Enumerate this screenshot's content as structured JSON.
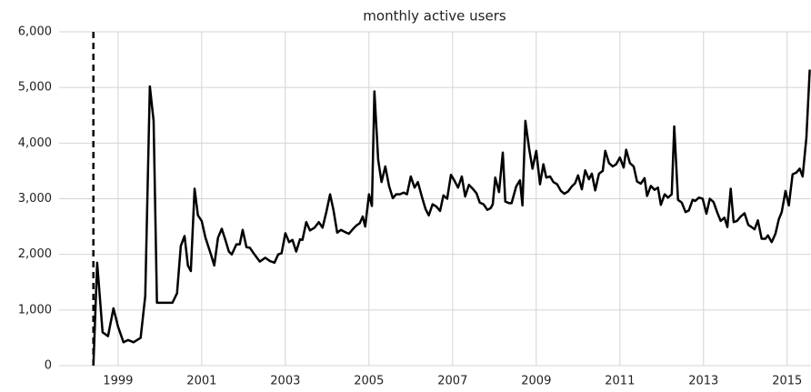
{
  "chart_data": {
    "type": "line",
    "title": "monthly active users",
    "x": [
      1998.41,
      1998.5,
      1998.63,
      1998.76,
      1998.89,
      1999.0,
      1999.13,
      1999.24,
      1999.37,
      1999.54,
      1999.65,
      1999.76,
      1999.85,
      1999.93,
      2000.3,
      2000.41,
      2000.5,
      2000.59,
      2000.67,
      2000.74,
      2000.83,
      2000.91,
      2001.0,
      2001.09,
      2001.22,
      2001.3,
      2001.39,
      2001.48,
      2001.57,
      2001.65,
      2001.72,
      2001.83,
      2001.91,
      2001.98,
      2002.07,
      2002.15,
      2002.26,
      2002.39,
      2002.52,
      2002.63,
      2002.74,
      2002.83,
      2002.91,
      2003.0,
      2003.09,
      2003.17,
      2003.26,
      2003.35,
      2003.41,
      2003.5,
      2003.59,
      2003.7,
      2003.8,
      2003.89,
      2003.98,
      2004.07,
      2004.15,
      2004.24,
      2004.33,
      2004.43,
      2004.52,
      2004.61,
      2004.7,
      2004.78,
      2004.85,
      2004.91,
      2005.0,
      2005.07,
      2005.13,
      2005.22,
      2005.3,
      2005.39,
      2005.48,
      2005.57,
      2005.65,
      2005.74,
      2005.83,
      2005.91,
      2006.0,
      2006.09,
      2006.17,
      2006.26,
      2006.35,
      2006.43,
      2006.52,
      2006.61,
      2006.7,
      2006.78,
      2006.87,
      2006.96,
      2007.04,
      2007.13,
      2007.22,
      2007.3,
      2007.39,
      2007.48,
      2007.57,
      2007.65,
      2007.74,
      2007.83,
      2007.91,
      2007.96,
      2008.02,
      2008.11,
      2008.2,
      2008.26,
      2008.35,
      2008.41,
      2008.52,
      2008.61,
      2008.67,
      2008.74,
      2008.83,
      2008.91,
      2009.0,
      2009.09,
      2009.17,
      2009.24,
      2009.33,
      2009.41,
      2009.5,
      2009.59,
      2009.67,
      2009.76,
      2009.85,
      2009.93,
      2010.0,
      2010.09,
      2010.17,
      2010.26,
      2010.33,
      2010.41,
      2010.5,
      2010.59,
      2010.65,
      2010.74,
      2010.83,
      2010.91,
      2011.0,
      2011.09,
      2011.15,
      2011.24,
      2011.33,
      2011.41,
      2011.5,
      2011.59,
      2011.65,
      2011.74,
      2011.83,
      2011.91,
      2011.98,
      2012.07,
      2012.15,
      2012.24,
      2012.3,
      2012.39,
      2012.48,
      2012.57,
      2012.65,
      2012.74,
      2012.8,
      2012.89,
      2012.98,
      2013.07,
      2013.15,
      2013.24,
      2013.33,
      2013.41,
      2013.5,
      2013.57,
      2013.65,
      2013.72,
      2013.8,
      2013.89,
      2013.98,
      2014.07,
      2014.15,
      2014.22,
      2014.3,
      2014.39,
      2014.48,
      2014.54,
      2014.63,
      2014.72,
      2014.8,
      2014.87,
      2014.96,
      2015.04,
      2015.13,
      2015.22,
      2015.3,
      2015.37,
      2015.46,
      2015.54
    ],
    "values": [
      0,
      1850,
      600,
      530,
      1030,
      700,
      420,
      460,
      420,
      500,
      1250,
      5020,
      4400,
      1130,
      1130,
      1300,
      2150,
      2330,
      1800,
      1700,
      3180,
      2700,
      2600,
      2300,
      2000,
      1800,
      2300,
      2460,
      2250,
      2050,
      2000,
      2180,
      2180,
      2440,
      2130,
      2120,
      2000,
      1870,
      1940,
      1880,
      1850,
      2000,
      2020,
      2380,
      2220,
      2260,
      2050,
      2270,
      2260,
      2580,
      2430,
      2480,
      2580,
      2480,
      2760,
      3080,
      2800,
      2390,
      2440,
      2400,
      2370,
      2450,
      2520,
      2560,
      2680,
      2500,
      3080,
      2870,
      4930,
      3700,
      3300,
      3580,
      3230,
      3010,
      3080,
      3080,
      3110,
      3080,
      3400,
      3200,
      3300,
      3050,
      2820,
      2700,
      2900,
      2860,
      2780,
      3060,
      3000,
      3430,
      3330,
      3200,
      3400,
      3040,
      3250,
      3180,
      3100,
      2930,
      2900,
      2800,
      2830,
      2900,
      3380,
      3120,
      3830,
      2950,
      2920,
      2920,
      3220,
      3330,
      2880,
      4400,
      3900,
      3540,
      3860,
      3260,
      3620,
      3380,
      3400,
      3300,
      3260,
      3140,
      3090,
      3130,
      3220,
      3280,
      3420,
      3170,
      3510,
      3350,
      3450,
      3150,
      3450,
      3500,
      3860,
      3640,
      3580,
      3620,
      3740,
      3560,
      3880,
      3640,
      3580,
      3310,
      3270,
      3370,
      3050,
      3230,
      3160,
      3200,
      2890,
      3080,
      3020,
      3080,
      4300,
      2980,
      2930,
      2760,
      2790,
      2980,
      2960,
      3020,
      3000,
      2730,
      3000,
      2940,
      2750,
      2600,
      2660,
      2490,
      3180,
      2580,
      2600,
      2680,
      2740,
      2530,
      2490,
      2450,
      2610,
      2280,
      2280,
      2340,
      2220,
      2370,
      2630,
      2760,
      3140,
      2880,
      3440,
      3470,
      3540,
      3400,
      4100,
      5320
    ],
    "color": "#000000",
    "xlim": [
      1997.59,
      2015.57
    ],
    "xticks": [
      1999,
      2001,
      2003,
      2005,
      2007,
      2009,
      2011,
      2013,
      2015
    ],
    "ylim": [
      0,
      6000
    ],
    "yticks": [
      0,
      {
        "value": 1000,
        "label": "1,000"
      },
      {
        "value": 2000,
        "label": "2,000"
      },
      {
        "value": 3000,
        "label": "3,000"
      },
      {
        "value": 4000,
        "label": "4,000"
      },
      {
        "value": 5000,
        "label": "5,000"
      },
      {
        "value": 6000,
        "label": "6,000"
      }
    ],
    "grid": true,
    "vlines": [
      1998.41
    ],
    "vline_style": "dashed"
  }
}
